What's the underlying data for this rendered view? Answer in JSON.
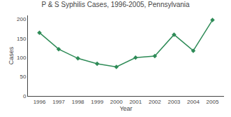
{
  "chart_data": {
    "type": "line",
    "title": "P & S Syphilis Cases, 1996-2005, Pennsylvania",
    "x_label": "Year",
    "y_label": "Cases",
    "x": [
      1996,
      1997,
      1998,
      1999,
      2000,
      2001,
      2002,
      2003,
      2004,
      2005
    ],
    "values": [
      165,
      122,
      98,
      84,
      76,
      100,
      104,
      160,
      118,
      198
    ],
    "color": "#2e8b57",
    "marker": "diamond",
    "xlim": [
      1995.4,
      2005.6
    ],
    "xticks": [
      1996,
      1997,
      1998,
      1999,
      2000,
      2001,
      2002,
      2003,
      2004,
      2005
    ],
    "ylim": [
      0,
      210
    ],
    "yticks": [
      0,
      50,
      100,
      150,
      200
    ],
    "grid": false,
    "legend": false
  }
}
